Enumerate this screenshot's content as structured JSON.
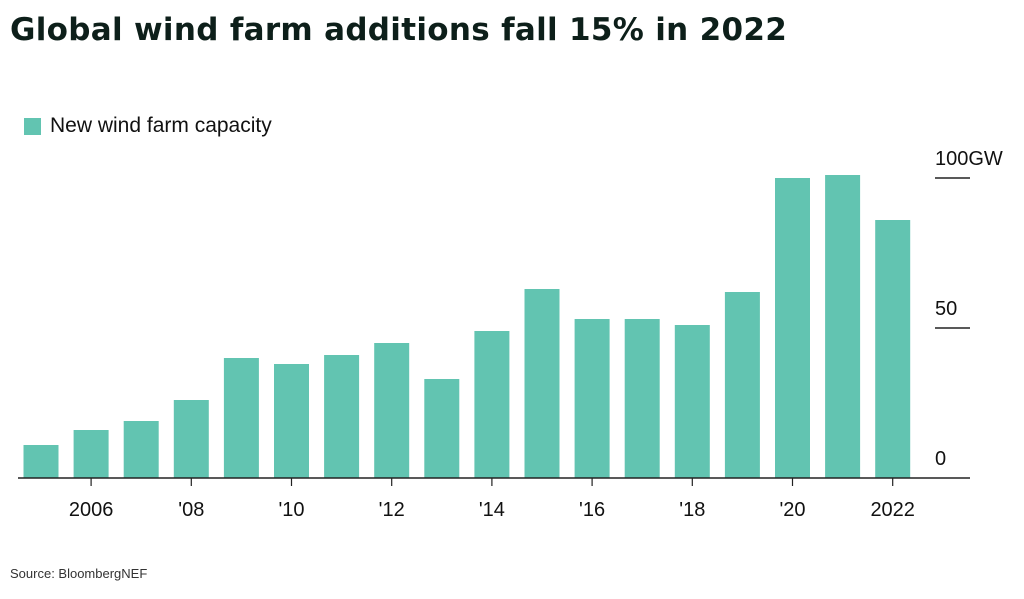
{
  "title": "Global wind farm additions fall 15% in 2022",
  "source": "Source: BloombergNEF",
  "chart_data": {
    "type": "bar",
    "title": "Global wind farm additions fall 15% in 2022",
    "categories": [
      "2005",
      "2006",
      "2007",
      "2008",
      "2009",
      "2010",
      "2011",
      "2012",
      "2013",
      "2014",
      "2015",
      "2016",
      "2017",
      "2018",
      "2019",
      "2020",
      "2021",
      "2022"
    ],
    "series": [
      {
        "name": "New wind farm capacity",
        "color": "#62c4b1",
        "values": [
          11,
          16,
          19,
          26,
          40,
          38,
          41,
          45,
          33,
          49,
          63,
          53,
          53,
          51,
          62,
          100,
          101,
          86
        ]
      }
    ],
    "x_tick_labels": [
      {
        "category": "2006",
        "label": "2006"
      },
      {
        "category": "2008",
        "label": "'08"
      },
      {
        "category": "2010",
        "label": "'10"
      },
      {
        "category": "2012",
        "label": "'12"
      },
      {
        "category": "2014",
        "label": "'14"
      },
      {
        "category": "2016",
        "label": "'16"
      },
      {
        "category": "2018",
        "label": "'18"
      },
      {
        "category": "2020",
        "label": "'20"
      },
      {
        "category": "2022",
        "label": "2022"
      }
    ],
    "y_ticks": [
      {
        "value": 0,
        "label": "0"
      },
      {
        "value": 50,
        "label": "50"
      },
      {
        "value": 100,
        "label": "100GW"
      }
    ],
    "ylim": [
      0,
      100
    ],
    "y_axis_side": "right",
    "legend_position": "top-left",
    "grid": false
  }
}
